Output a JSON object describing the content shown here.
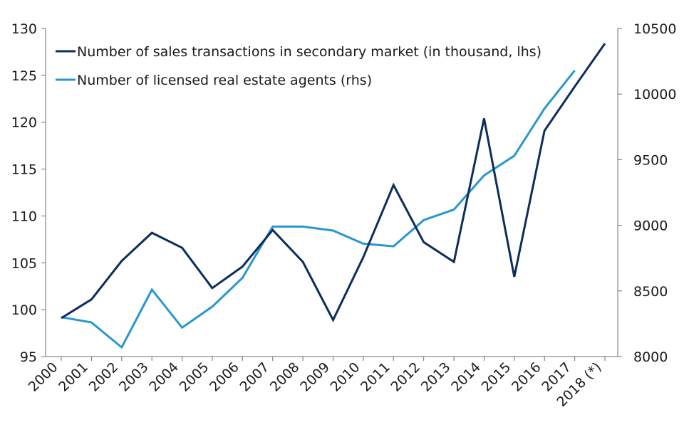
{
  "chart_data": {
    "type": "line",
    "categories": [
      "2000",
      "2001",
      "2002",
      "2003",
      "2004",
      "2005",
      "2006",
      "2007",
      "2008",
      "2009",
      "2010",
      "2011",
      "2012",
      "2013",
      "2014",
      "2015",
      "2016",
      "2017",
      "2018 (*)"
    ],
    "series": [
      {
        "name": "Number of sales transactions in secondary market (in thousand, lhs)",
        "axis": "left",
        "color": "#0d2d5b",
        "values": [
          99.1,
          101.1,
          105.2,
          108.2,
          106.6,
          102.3,
          104.6,
          108.5,
          105.1,
          98.9,
          105.6,
          113.3,
          107.2,
          105.1,
          120.4,
          103.5,
          119.1,
          123.8,
          128.4
        ]
      },
      {
        "name": "Number of licensed real estate agents (rhs)",
        "axis": "right",
        "color": "#2897cf",
        "values": [
          8300,
          8260,
          8070,
          8510,
          8220,
          8380,
          8600,
          8990,
          8990,
          8960,
          8860,
          8840,
          9040,
          9120,
          9380,
          9530,
          9890,
          10180,
          null
        ]
      }
    ],
    "yaxis_left": {
      "ylim": [
        95,
        130
      ],
      "ticks": [
        "95",
        "100",
        "105",
        "110",
        "115",
        "120",
        "125",
        "130"
      ]
    },
    "yaxis_right": {
      "ylim": [
        8000,
        10500
      ],
      "ticks": [
        "8000",
        "8500",
        "9000",
        "9500",
        "10000",
        "10500"
      ]
    },
    "grid": false,
    "legend_position": "top-left",
    "title": "",
    "xlabel": "",
    "ylabel": ""
  }
}
